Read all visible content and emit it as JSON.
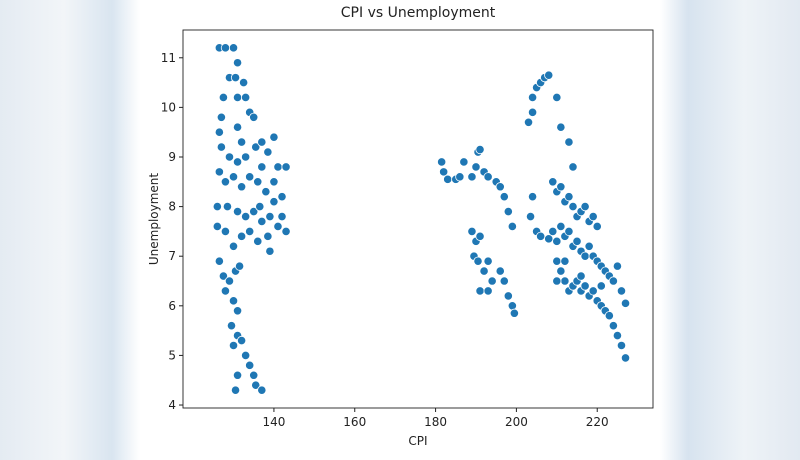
{
  "chart_data": {
    "type": "scatter",
    "title": "CPI vs Unemployment",
    "x_label": "CPI",
    "y_label": "Unemployment",
    "color": "#1f77b4",
    "xlim": [
      117.5,
      233.8
    ],
    "ylim": [
      3.94,
      11.56
    ],
    "xticks": [
      140,
      160,
      180,
      200,
      220
    ],
    "yticks": [
      4,
      5,
      6,
      7,
      8,
      9,
      10,
      11
    ],
    "x": [
      126.5,
      128,
      130,
      131,
      129,
      130.5,
      127.5,
      132.5,
      131,
      133,
      127,
      126.5,
      131,
      134,
      135,
      132,
      127,
      129,
      131,
      133,
      135.5,
      137,
      138.5,
      140,
      141,
      143,
      126.5,
      128,
      130,
      132,
      134,
      136,
      138,
      140,
      142,
      126,
      128.5,
      131,
      133,
      135,
      137,
      139,
      141,
      143,
      126,
      128,
      130,
      132,
      134,
      136,
      138.5,
      139,
      126.5,
      127.5,
      129,
      130.5,
      131.5,
      128,
      130,
      131,
      129.5,
      131,
      130,
      132,
      133,
      134,
      131,
      135,
      135.5,
      130.5,
      137,
      142,
      140,
      136.5,
      137,
      181.5,
      182,
      183,
      185,
      186,
      187,
      189,
      190,
      190.5,
      191,
      192,
      193,
      195,
      196,
      197,
      198,
      199,
      189,
      190,
      191,
      189.5,
      190.5,
      192,
      193,
      194,
      196,
      197,
      198,
      199,
      199.5,
      191,
      193,
      204,
      205,
      206,
      207,
      208,
      210,
      203,
      204,
      211,
      213,
      214,
      209,
      210,
      211,
      212,
      213,
      214,
      215,
      216,
      217,
      218,
      219,
      220,
      204,
      203.5,
      205,
      206,
      208,
      209,
      210,
      211,
      212,
      213,
      214,
      215,
      216,
      217,
      218,
      219,
      220,
      221,
      222,
      223,
      224,
      225,
      226,
      227,
      210,
      211,
      212,
      213,
      214,
      215,
      216,
      217,
      218,
      219,
      220,
      221,
      222,
      223,
      224,
      225,
      226,
      227,
      210,
      212,
      216,
      221
    ],
    "values": [
      11.2,
      11.2,
      11.2,
      10.9,
      10.6,
      10.6,
      10.2,
      10.5,
      10.2,
      10.2,
      9.8,
      9.5,
      9.6,
      9.9,
      9.8,
      9.3,
      9.2,
      9.0,
      8.9,
      9.0,
      9.2,
      9.3,
      9.1,
      9.4,
      8.8,
      8.8,
      8.7,
      8.5,
      8.6,
      8.4,
      8.6,
      8.5,
      8.3,
      8.1,
      8.2,
      8.0,
      8.0,
      7.9,
      7.8,
      7.9,
      7.7,
      7.8,
      7.6,
      7.5,
      7.6,
      7.5,
      7.2,
      7.4,
      7.5,
      7.3,
      7.4,
      7.1,
      6.9,
      6.6,
      6.5,
      6.7,
      6.8,
      6.3,
      6.1,
      5.9,
      5.6,
      5.4,
      5.2,
      5.3,
      5.0,
      4.8,
      4.6,
      4.6,
      4.4,
      4.3,
      4.3,
      7.8,
      8.5,
      8.0,
      8.8,
      8.9,
      8.7,
      8.55,
      8.55,
      8.6,
      8.9,
      8.6,
      8.8,
      9.1,
      9.15,
      8.7,
      8.6,
      8.5,
      8.4,
      8.2,
      7.9,
      7.6,
      7.5,
      7.3,
      7.4,
      7.0,
      6.9,
      6.7,
      6.9,
      6.5,
      6.7,
      6.5,
      6.2,
      6.0,
      5.85,
      6.3,
      6.3,
      10.2,
      10.4,
      10.5,
      10.6,
      10.65,
      10.2,
      9.7,
      9.9,
      9.6,
      9.3,
      8.8,
      8.5,
      8.3,
      8.4,
      8.1,
      8.2,
      8.0,
      7.8,
      7.9,
      8.0,
      7.7,
      7.8,
      7.6,
      8.2,
      7.8,
      7.5,
      7.4,
      7.35,
      7.5,
      7.3,
      7.6,
      7.4,
      7.5,
      7.2,
      7.3,
      7.1,
      7.0,
      7.2,
      7.0,
      6.9,
      6.8,
      6.7,
      6.6,
      6.5,
      6.8,
      6.3,
      6.05,
      6.9,
      6.7,
      6.5,
      6.3,
      6.4,
      6.5,
      6.3,
      6.4,
      6.2,
      6.3,
      6.1,
      6.0,
      5.9,
      5.8,
      5.6,
      5.4,
      5.2,
      4.95,
      6.5,
      6.9,
      6.6,
      6.4
    ]
  }
}
